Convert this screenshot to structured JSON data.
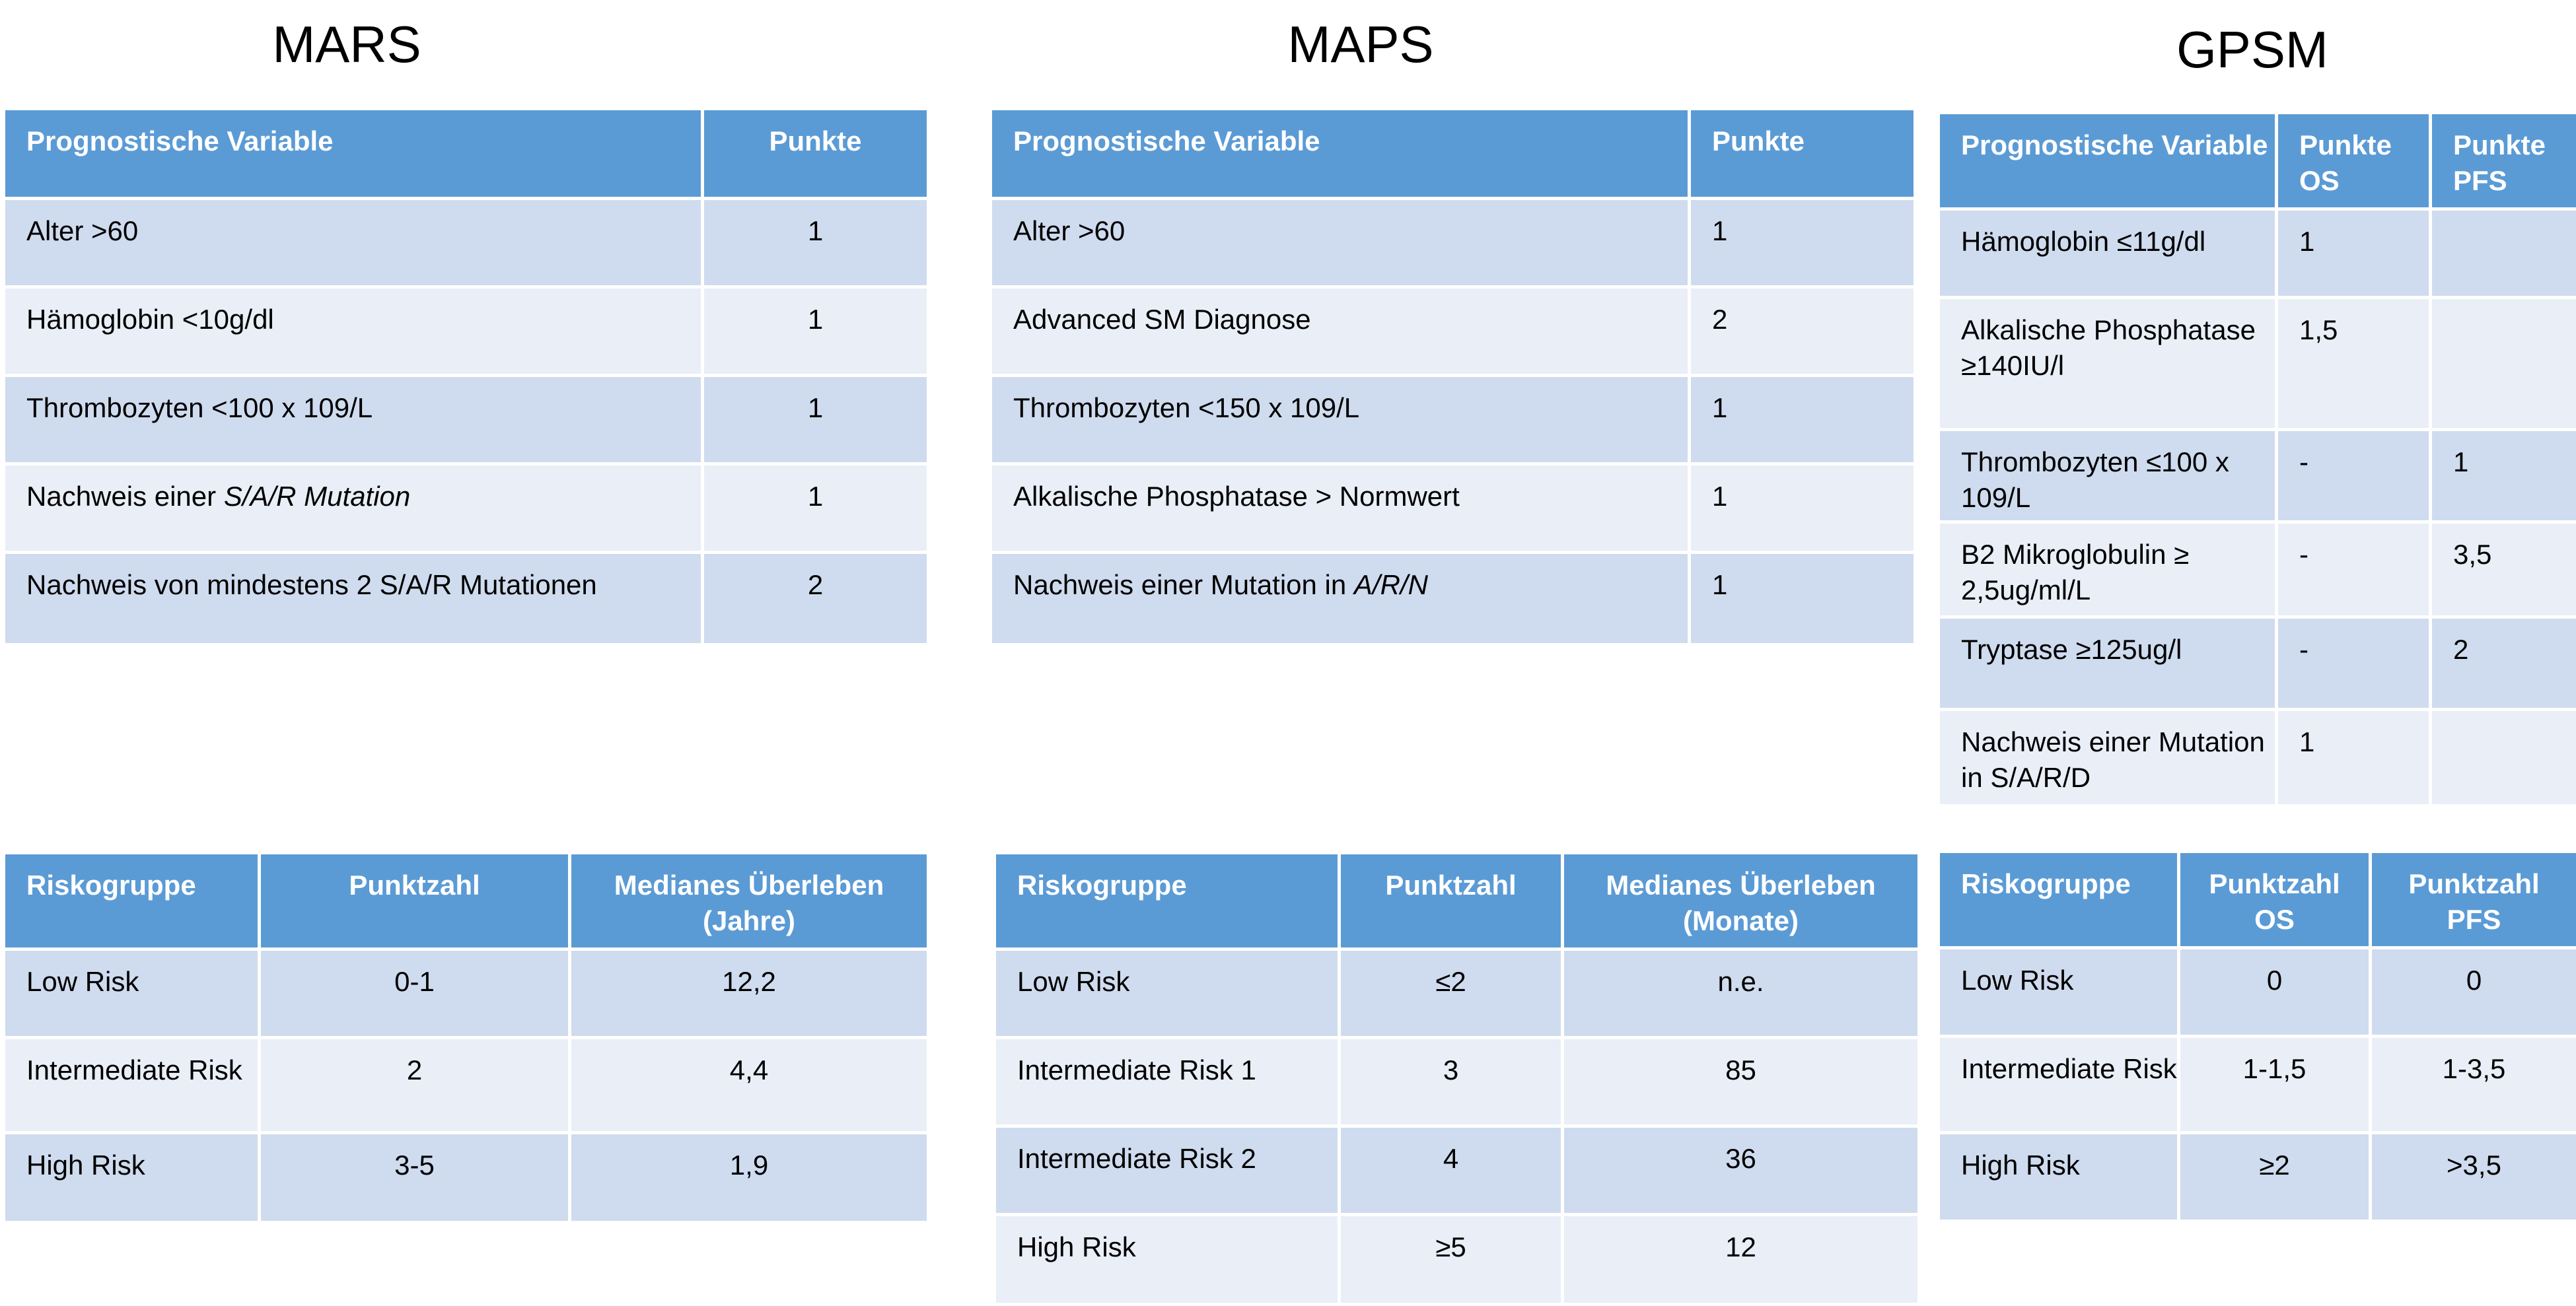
{
  "mars": {
    "title": "MARS",
    "variables_table": {
      "headers": [
        "Prognostische Variable",
        "Punkte"
      ],
      "rows": [
        {
          "variable": "Alter >60",
          "points": "1"
        },
        {
          "variable": "Hämoglobin <10g/dl",
          "points": "1"
        },
        {
          "variable": "Thrombozyten <100 x 109/L",
          "points": "1"
        },
        {
          "variable_prefix": "Nachweis einer ",
          "variable_italic": "S/A/R Mutation",
          "points": "1"
        },
        {
          "variable": "Nachweis von mindestens 2 S/A/R Mutationen",
          "points": "2"
        }
      ]
    },
    "risk_table": {
      "headers": [
        "Riskogruppe",
        "Punktzahl",
        "Medianes Überleben (Jahre)"
      ],
      "rows": [
        {
          "group": "Low Risk",
          "score": "0-1",
          "survival": "12,2"
        },
        {
          "group": "Intermediate Risk",
          "score": "2",
          "survival": "4,4"
        },
        {
          "group": "High Risk",
          "score": "3-5",
          "survival": "1,9"
        }
      ]
    }
  },
  "maps": {
    "title": "MAPS",
    "variables_table": {
      "headers": [
        "Prognostische Variable",
        "Punkte"
      ],
      "rows": [
        {
          "variable": "Alter >60",
          "points": "1"
        },
        {
          "variable": "Advanced SM Diagnose",
          "points": "2"
        },
        {
          "variable": "Thrombozyten <150 x 109/L",
          "points": "1"
        },
        {
          "variable": "Alkalische Phosphatase > Normwert",
          "points": "1"
        },
        {
          "variable_prefix": "Nachweis einer Mutation in ",
          "variable_italic": "A/R/N",
          "points": "1"
        }
      ]
    },
    "risk_table": {
      "headers": [
        "Riskogruppe",
        "Punktzahl",
        "Medianes Überleben (Monate)"
      ],
      "rows": [
        {
          "group": "Low Risk",
          "score": "≤2",
          "survival": "n.e."
        },
        {
          "group": "Intermediate Risk 1",
          "score": "3",
          "survival": "85"
        },
        {
          "group": "Intermediate Risk 2",
          "score": "4",
          "survival": "36"
        },
        {
          "group": "High Risk",
          "score": "≥5",
          "survival": "12"
        }
      ]
    }
  },
  "gpsm": {
    "title": "GPSM",
    "variables_table": {
      "headers": [
        "Prognostische Variable",
        "Punkte OS",
        "Punkte PFS"
      ],
      "rows": [
        {
          "variable": "Hämoglobin ≤11g/dl",
          "os": "1",
          "pfs": ""
        },
        {
          "variable": "Alkalische Phosphatase ≥140IU/l",
          "os": "1,5",
          "pfs": ""
        },
        {
          "variable": "Thrombozyten ≤100 x 109/L",
          "os": "-",
          "pfs": "1"
        },
        {
          "variable": "B2 Mikroglobulin ≥ 2,5ug/ml/L",
          "os": "-",
          "pfs": "3,5"
        },
        {
          "variable": "Tryptase ≥125ug/l",
          "os": "-",
          "pfs": "2"
        },
        {
          "variable": "Nachweis einer Mutation in S/A/R/D",
          "os": "1",
          "pfs": ""
        }
      ]
    },
    "risk_table": {
      "headers": [
        "Riskogruppe",
        "Punktzahl OS",
        "Punktzahl PFS"
      ],
      "rows": [
        {
          "group": "Low Risk",
          "os": "0",
          "pfs": "0"
        },
        {
          "group": "Intermediate Risk",
          "os": "1-1,5",
          "pfs": "1-3,5"
        },
        {
          "group": "High Risk",
          "os": "≥2",
          "pfs": ">3,5"
        }
      ]
    }
  }
}
